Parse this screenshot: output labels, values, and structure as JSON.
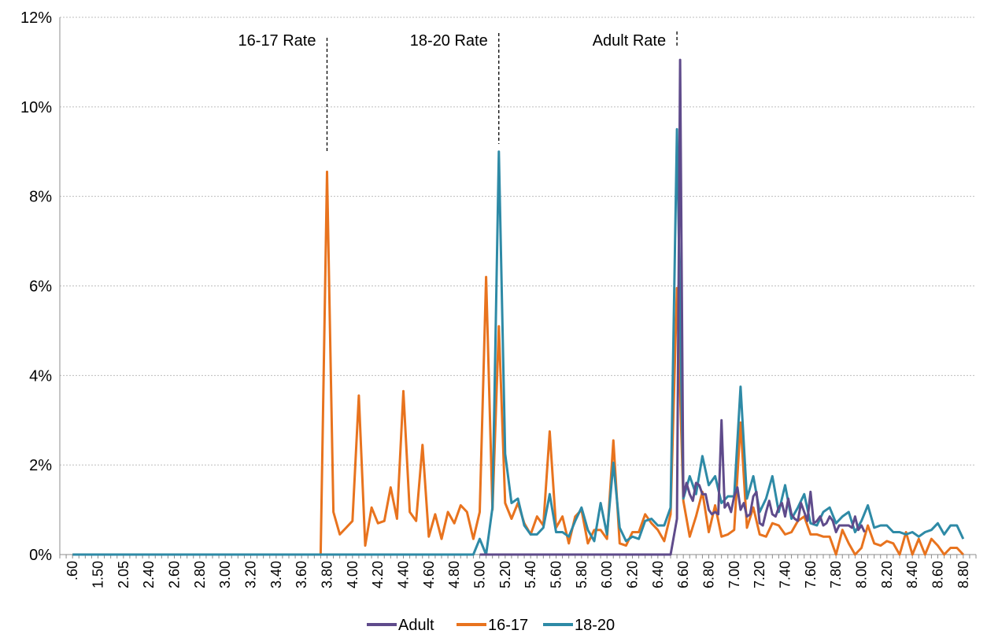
{
  "chart_data": {
    "type": "line",
    "title": "",
    "xlabel": "",
    "ylabel": "",
    "ylim": [
      0,
      0.12
    ],
    "yticks": [
      "0%",
      "2%",
      "4%",
      "6%",
      "8%",
      "10%",
      "12%"
    ],
    "grid": true,
    "legend_position": "bottom",
    "x_tick_labels": [
      ".60",
      "1.50",
      "2.05",
      "2.40",
      "2.60",
      "2.80",
      "3.00",
      "3.20",
      "3.40",
      "3.60",
      "3.80",
      "4.00",
      "4.20",
      "4.40",
      "4.60",
      "4.80",
      "5.00",
      "5.20",
      "5.40",
      "5.60",
      "5.80",
      "6.00",
      "6.20",
      "6.40",
      "6.60",
      "6.80",
      "7.00",
      "7.20",
      "7.40",
      "7.60",
      "7.80",
      "8.00",
      "8.20",
      "8.40",
      "8.60",
      "8.80"
    ],
    "annotations": [
      {
        "label": "16-17 Rate",
        "x": 3.8
      },
      {
        "label": "18-20 Rate",
        "x": 5.15
      },
      {
        "label": "Adult Rate",
        "x": 6.55
      }
    ],
    "series": [
      {
        "name": "Adult",
        "color": "#5f4b8b",
        "points": [
          [
            5.0,
            0
          ],
          [
            5.1,
            0
          ],
          [
            5.15,
            0
          ],
          [
            5.2,
            0
          ],
          [
            5.4,
            0
          ],
          [
            5.6,
            0
          ],
          [
            5.8,
            0
          ],
          [
            6.0,
            0
          ],
          [
            6.2,
            0
          ],
          [
            6.4,
            0
          ],
          [
            6.5,
            0
          ],
          [
            6.55,
            0.008
          ],
          [
            6.575,
            0.1105
          ],
          [
            6.6,
            0.013
          ],
          [
            6.625,
            0.016
          ],
          [
            6.65,
            0.0135
          ],
          [
            6.675,
            0.012
          ],
          [
            6.7,
            0.016
          ],
          [
            6.725,
            0.0155
          ],
          [
            6.75,
            0.0135
          ],
          [
            6.775,
            0.0135
          ],
          [
            6.8,
            0.01
          ],
          [
            6.825,
            0.009
          ],
          [
            6.85,
            0.0095
          ],
          [
            6.875,
            0.009
          ],
          [
            6.9,
            0.03
          ],
          [
            6.925,
            0.0105
          ],
          [
            6.95,
            0.0115
          ],
          [
            6.975,
            0.0095
          ],
          [
            7.0,
            0.013
          ],
          [
            7.025,
            0.015
          ],
          [
            7.05,
            0.01
          ],
          [
            7.075,
            0.0115
          ],
          [
            7.1,
            0.0085
          ],
          [
            7.125,
            0.009
          ],
          [
            7.15,
            0.013
          ],
          [
            7.175,
            0.014
          ],
          [
            7.2,
            0.007
          ],
          [
            7.225,
            0.0065
          ],
          [
            7.25,
            0.0095
          ],
          [
            7.275,
            0.012
          ],
          [
            7.3,
            0.009
          ],
          [
            7.325,
            0.0085
          ],
          [
            7.35,
            0.0105
          ],
          [
            7.375,
            0.0115
          ],
          [
            7.4,
            0.0085
          ],
          [
            7.425,
            0.0125
          ],
          [
            7.45,
            0.009
          ],
          [
            7.475,
            0.008
          ],
          [
            7.5,
            0.0075
          ],
          [
            7.525,
            0.0115
          ],
          [
            7.55,
            0.0095
          ],
          [
            7.575,
            0.0075
          ],
          [
            7.6,
            0.014
          ],
          [
            7.625,
            0.007
          ],
          [
            7.65,
            0.0075
          ],
          [
            7.675,
            0.0085
          ],
          [
            7.7,
            0.0065
          ],
          [
            7.725,
            0.007
          ],
          [
            7.75,
            0.0085
          ],
          [
            7.775,
            0.0075
          ],
          [
            7.8,
            0.005
          ],
          [
            7.825,
            0.0065
          ],
          [
            7.85,
            0.0065
          ],
          [
            7.875,
            0.0065
          ],
          [
            7.9,
            0.0065
          ],
          [
            7.925,
            0.006
          ],
          [
            7.95,
            0.0085
          ],
          [
            7.975,
            0.0055
          ],
          [
            8.0,
            0.0065
          ],
          [
            8.025,
            0.005
          ]
        ]
      },
      {
        "name": "16-17",
        "color": "#e8731e",
        "points": [
          [
            0.6,
            0
          ],
          [
            1.5,
            0
          ],
          [
            2.05,
            0
          ],
          [
            2.4,
            0
          ],
          [
            2.6,
            0
          ],
          [
            2.8,
            0
          ],
          [
            3.0,
            0
          ],
          [
            3.2,
            0
          ],
          [
            3.4,
            0
          ],
          [
            3.6,
            0
          ],
          [
            3.7,
            0
          ],
          [
            3.75,
            0
          ],
          [
            3.8,
            0.0855
          ],
          [
            3.85,
            0.0095
          ],
          [
            3.9,
            0.0045
          ],
          [
            3.95,
            0.006
          ],
          [
            4.0,
            0.0075
          ],
          [
            4.05,
            0.0355
          ],
          [
            4.1,
            0.002
          ],
          [
            4.15,
            0.0105
          ],
          [
            4.2,
            0.007
          ],
          [
            4.25,
            0.0075
          ],
          [
            4.3,
            0.015
          ],
          [
            4.35,
            0.008
          ],
          [
            4.4,
            0.0365
          ],
          [
            4.45,
            0.0095
          ],
          [
            4.5,
            0.0075
          ],
          [
            4.55,
            0.0245
          ],
          [
            4.6,
            0.004
          ],
          [
            4.65,
            0.009
          ],
          [
            4.7,
            0.0035
          ],
          [
            4.75,
            0.0095
          ],
          [
            4.8,
            0.007
          ],
          [
            4.85,
            0.011
          ],
          [
            4.9,
            0.0095
          ],
          [
            4.95,
            0.0035
          ],
          [
            5.0,
            0.0095
          ],
          [
            5.05,
            0.062
          ],
          [
            5.1,
            0.01
          ],
          [
            5.15,
            0.051
          ],
          [
            5.2,
            0.0115
          ],
          [
            5.25,
            0.008
          ],
          [
            5.3,
            0.0115
          ],
          [
            5.35,
            0.007
          ],
          [
            5.4,
            0.0045
          ],
          [
            5.45,
            0.0085
          ],
          [
            5.5,
            0.0065
          ],
          [
            5.55,
            0.0275
          ],
          [
            5.6,
            0.006
          ],
          [
            5.65,
            0.0085
          ],
          [
            5.7,
            0.0025
          ],
          [
            5.75,
            0.0085
          ],
          [
            5.8,
            0.01
          ],
          [
            5.85,
            0.0025
          ],
          [
            5.9,
            0.0055
          ],
          [
            5.95,
            0.0055
          ],
          [
            6.0,
            0.0035
          ],
          [
            6.05,
            0.0255
          ],
          [
            6.1,
            0.0025
          ],
          [
            6.15,
            0.002
          ],
          [
            6.2,
            0.005
          ],
          [
            6.25,
            0.005
          ],
          [
            6.3,
            0.009
          ],
          [
            6.35,
            0.007
          ],
          [
            6.4,
            0.0055
          ],
          [
            6.45,
            0.003
          ],
          [
            6.5,
            0.009
          ],
          [
            6.55,
            0.0595
          ],
          [
            6.6,
            0.012
          ],
          [
            6.65,
            0.004
          ],
          [
            6.7,
            0.0085
          ],
          [
            6.75,
            0.014
          ],
          [
            6.8,
            0.005
          ],
          [
            6.85,
            0.011
          ],
          [
            6.9,
            0.004
          ],
          [
            6.95,
            0.0045
          ],
          [
            7.0,
            0.0055
          ],
          [
            7.05,
            0.0295
          ],
          [
            7.1,
            0.006
          ],
          [
            7.15,
            0.0105
          ],
          [
            7.2,
            0.0045
          ],
          [
            7.25,
            0.004
          ],
          [
            7.3,
            0.007
          ],
          [
            7.35,
            0.0065
          ],
          [
            7.4,
            0.0045
          ],
          [
            7.45,
            0.005
          ],
          [
            7.5,
            0.0075
          ],
          [
            7.55,
            0.0085
          ],
          [
            7.6,
            0.0045
          ],
          [
            7.65,
            0.0045
          ],
          [
            7.7,
            0.004
          ],
          [
            7.75,
            0.004
          ],
          [
            7.8,
            0
          ],
          [
            7.85,
            0.0055
          ],
          [
            7.9,
            0.0025
          ],
          [
            7.95,
            0
          ],
          [
            8.0,
            0.0015
          ],
          [
            8.05,
            0.0065
          ],
          [
            8.1,
            0.0025
          ],
          [
            8.15,
            0.002
          ],
          [
            8.2,
            0.003
          ],
          [
            8.25,
            0.0025
          ],
          [
            8.3,
            0
          ],
          [
            8.35,
            0.005
          ],
          [
            8.4,
            0
          ],
          [
            8.45,
            0.0035
          ],
          [
            8.5,
            0
          ],
          [
            8.55,
            0.0035
          ],
          [
            8.6,
            0.002
          ],
          [
            8.65,
            0
          ],
          [
            8.7,
            0.0015
          ],
          [
            8.75,
            0.0015
          ],
          [
            8.8,
            0
          ]
        ]
      },
      {
        "name": "18-20",
        "color": "#2e8aa6",
        "points": [
          [
            0.6,
            0
          ],
          [
            1.5,
            0
          ],
          [
            2.05,
            0
          ],
          [
            2.4,
            0
          ],
          [
            2.6,
            0
          ],
          [
            2.8,
            0
          ],
          [
            3.0,
            0
          ],
          [
            3.2,
            0
          ],
          [
            3.4,
            0
          ],
          [
            3.6,
            0
          ],
          [
            3.8,
            0
          ],
          [
            4.0,
            0
          ],
          [
            4.2,
            0
          ],
          [
            4.4,
            0
          ],
          [
            4.6,
            0
          ],
          [
            4.8,
            0
          ],
          [
            4.95,
            0
          ],
          [
            5.0,
            0.0035
          ],
          [
            5.05,
            0
          ],
          [
            5.1,
            0.0105
          ],
          [
            5.15,
            0.09
          ],
          [
            5.2,
            0.0225
          ],
          [
            5.25,
            0.0115
          ],
          [
            5.3,
            0.0125
          ],
          [
            5.35,
            0.0065
          ],
          [
            5.4,
            0.0045
          ],
          [
            5.45,
            0.0045
          ],
          [
            5.5,
            0.006
          ],
          [
            5.55,
            0.0135
          ],
          [
            5.6,
            0.005
          ],
          [
            5.65,
            0.005
          ],
          [
            5.7,
            0.004
          ],
          [
            5.75,
            0.0075
          ],
          [
            5.8,
            0.0105
          ],
          [
            5.85,
            0.0055
          ],
          [
            5.9,
            0.003
          ],
          [
            5.95,
            0.0115
          ],
          [
            6.0,
            0.0045
          ],
          [
            6.05,
            0.0205
          ],
          [
            6.1,
            0.006
          ],
          [
            6.15,
            0.003
          ],
          [
            6.2,
            0.004
          ],
          [
            6.25,
            0.0035
          ],
          [
            6.3,
            0.0075
          ],
          [
            6.35,
            0.008
          ],
          [
            6.4,
            0.0065
          ],
          [
            6.45,
            0.0065
          ],
          [
            6.5,
            0.0105
          ],
          [
            6.55,
            0.095
          ],
          [
            6.6,
            0.0125
          ],
          [
            6.65,
            0.0175
          ],
          [
            6.7,
            0.0135
          ],
          [
            6.75,
            0.022
          ],
          [
            6.8,
            0.0155
          ],
          [
            6.85,
            0.0175
          ],
          [
            6.9,
            0.0115
          ],
          [
            6.95,
            0.013
          ],
          [
            7.0,
            0.013
          ],
          [
            7.05,
            0.0375
          ],
          [
            7.1,
            0.0125
          ],
          [
            7.15,
            0.0175
          ],
          [
            7.2,
            0.0095
          ],
          [
            7.25,
            0.0125
          ],
          [
            7.3,
            0.0175
          ],
          [
            7.35,
            0.0095
          ],
          [
            7.4,
            0.0155
          ],
          [
            7.45,
            0.008
          ],
          [
            7.5,
            0.0105
          ],
          [
            7.55,
            0.0135
          ],
          [
            7.6,
            0.007
          ],
          [
            7.65,
            0.0065
          ],
          [
            7.7,
            0.0095
          ],
          [
            7.75,
            0.0105
          ],
          [
            7.8,
            0.007
          ],
          [
            7.85,
            0.0085
          ],
          [
            7.9,
            0.0095
          ],
          [
            7.95,
            0.005
          ],
          [
            8.0,
            0.0075
          ],
          [
            8.05,
            0.011
          ],
          [
            8.1,
            0.006
          ],
          [
            8.15,
            0.0065
          ],
          [
            8.2,
            0.0065
          ],
          [
            8.25,
            0.005
          ],
          [
            8.3,
            0.005
          ],
          [
            8.35,
            0.0045
          ],
          [
            8.4,
            0.005
          ],
          [
            8.45,
            0.004
          ],
          [
            8.5,
            0.005
          ],
          [
            8.55,
            0.0055
          ],
          [
            8.6,
            0.007
          ],
          [
            8.65,
            0.0045
          ],
          [
            8.7,
            0.0065
          ],
          [
            8.75,
            0.0065
          ],
          [
            8.8,
            0.0035
          ]
        ]
      }
    ]
  }
}
